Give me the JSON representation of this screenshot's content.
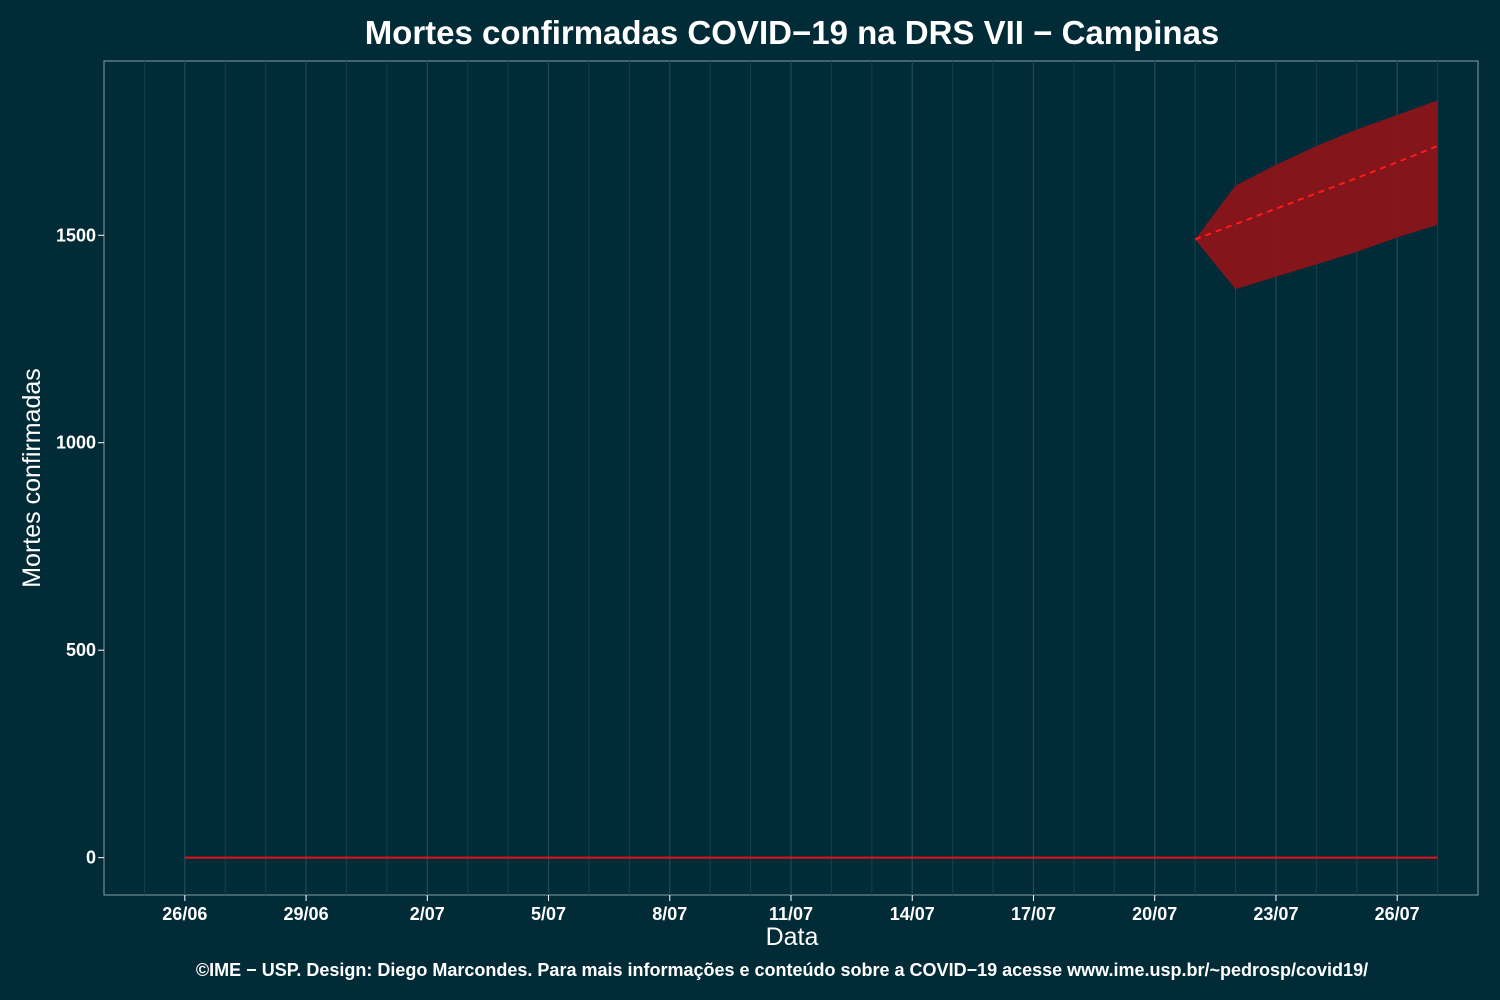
{
  "chart_data": {
    "type": "line",
    "title": "Mortes confirmadas COVID−19 na DRS VII − Campinas",
    "xlabel": "Data",
    "ylabel": "Mortes confirmadas",
    "caption": "©IME − USP. Design: Diego Marcondes. Para mais informações e conteúdo sobre a COVID−19 acesse www.ime.usp.br/~pedrosp/covid19/",
    "x_ticks": [
      "26/06",
      "29/06",
      "2/07",
      "5/07",
      "8/07",
      "11/07",
      "14/07",
      "17/07",
      "20/07",
      "23/07",
      "26/07"
    ],
    "y_ticks": [
      0,
      500,
      1000,
      1500
    ],
    "xlim": [
      "2020-06-24",
      "2020-07-28"
    ],
    "ylim": [
      -90,
      1920
    ],
    "grid": true,
    "series": [
      {
        "type": "line",
        "style": "solid",
        "color": "#e8101a",
        "x": [
          "2020-06-26",
          "2020-07-27"
        ],
        "y": [
          0,
          0
        ]
      },
      {
        "type": "line",
        "style": "dashed",
        "color": "#ff1a1a",
        "x": [
          "2020-07-21",
          "2020-07-22",
          "2020-07-23",
          "2020-07-24",
          "2020-07-25",
          "2020-07-26",
          "2020-07-27"
        ],
        "y": [
          1490,
          1527,
          1564,
          1601,
          1638,
          1676,
          1715
        ]
      },
      {
        "type": "band",
        "color": "#8b1419",
        "x": [
          "2020-07-21",
          "2020-07-22",
          "2020-07-23",
          "2020-07-24",
          "2020-07-25",
          "2020-07-26",
          "2020-07-27"
        ],
        "lower": [
          1490,
          1370,
          1400,
          1430,
          1460,
          1495,
          1525
        ],
        "upper": [
          1490,
          1620,
          1670,
          1715,
          1755,
          1790,
          1825
        ]
      }
    ]
  }
}
